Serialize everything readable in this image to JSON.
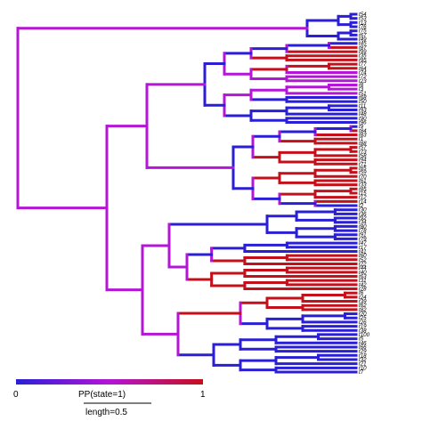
{
  "tips": [
    "t54",
    "t53",
    "t13",
    "t76",
    "t75",
    "t67",
    "t49",
    "t45",
    "t87",
    "t99",
    "t35",
    "t95",
    "t77",
    "t64",
    "t74",
    "t72",
    "t23",
    "t8",
    "t3",
    "t51",
    "t68",
    "t50",
    "t11",
    "t93",
    "t48",
    "t90",
    "t96",
    "t9",
    "t84",
    "t83",
    "t1",
    "t88",
    "t57",
    "t73",
    "t58",
    "t94",
    "t71",
    "t65",
    "t59",
    "t70",
    "t61",
    "t33",
    "t85",
    "t15",
    "t12",
    "t14",
    "t2",
    "t30",
    "t36",
    "t92",
    "t34",
    "t80",
    "t78",
    "t91",
    "t79",
    "t47",
    "t17",
    "t41",
    "t60",
    "t52",
    "t22",
    "t44",
    "t40",
    "t63",
    "t31",
    "t42",
    "t28",
    "t6",
    "t24",
    "t39",
    "t62",
    "t82",
    "t20",
    "t25",
    "t26",
    "t19",
    "t38",
    "t100",
    "t5",
    "t46",
    "t66",
    "t29",
    "t18",
    "t32",
    "t21",
    "t10",
    "t7"
  ],
  "legend": {
    "low_label": "0",
    "high_label": "1",
    "title": "PP(state=1)",
    "length_label": "length=0.5",
    "color_low": "#2a1fd6",
    "color_mid": "#b415d6",
    "color_high": "#c4101a"
  }
}
